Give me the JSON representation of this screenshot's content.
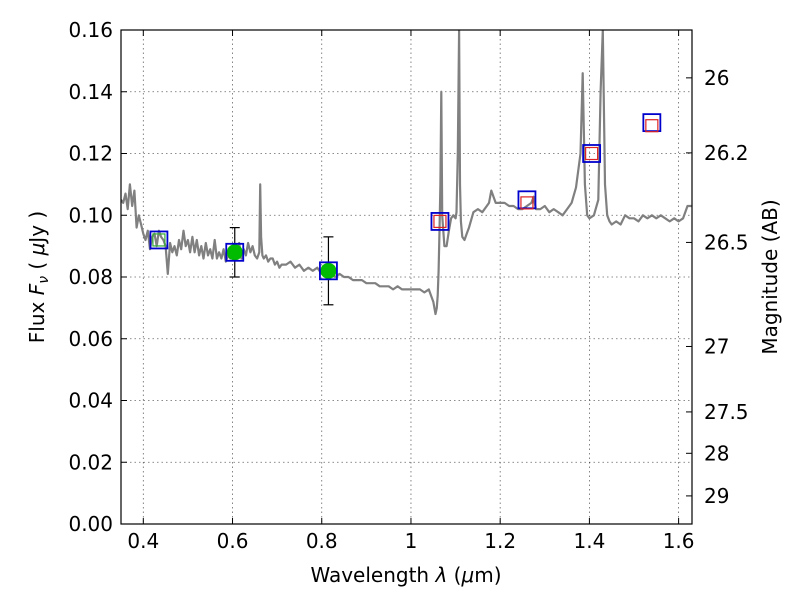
{
  "chart_data": {
    "type": "line",
    "title": "",
    "xlabel": "Wavelength  λ (μm)",
    "ylabel": "Flux  F_ν  ( μJy )",
    "ylabel_right": "Magnitude (AB)",
    "xlim": [
      0.35,
      1.63
    ],
    "ylim": [
      0.0,
      0.16
    ],
    "grid": true,
    "x_ticks": [
      0.4,
      0.6,
      0.8,
      1.0,
      1.2,
      1.4,
      1.6
    ],
    "x_tick_labels": [
      "0.4",
      "0.6",
      "0.8",
      "1",
      "1.2",
      "1.4",
      "1.6"
    ],
    "y_ticks": [
      0.0,
      0.02,
      0.04,
      0.06,
      0.08,
      0.1,
      0.12,
      0.14,
      0.16
    ],
    "y_tick_labels": [
      "0.00",
      "0.02",
      "0.04",
      "0.06",
      "0.08",
      "0.10",
      "0.12",
      "0.14",
      "0.16"
    ],
    "right_ticks": [
      {
        "label": "26",
        "flux": 0.1445
      },
      {
        "label": "26.2",
        "flux": 0.1202
      },
      {
        "label": "26.5",
        "flux": 0.0912
      },
      {
        "label": "27",
        "flux": 0.0575
      },
      {
        "label": "27.5",
        "flux": 0.0363
      },
      {
        "label": "28",
        "flux": 0.0229
      },
      {
        "label": "29",
        "flux": 0.0091
      }
    ],
    "series": [
      {
        "type": "line",
        "color": "#808080",
        "x": [
          0.35,
          0.355,
          0.36,
          0.365,
          0.37,
          0.375,
          0.38,
          0.385,
          0.39,
          0.395,
          0.4,
          0.405,
          0.41,
          0.415,
          0.42,
          0.425,
          0.43,
          0.435,
          0.44,
          0.445,
          0.45,
          0.455,
          0.46,
          0.465,
          0.47,
          0.475,
          0.48,
          0.485,
          0.49,
          0.495,
          0.5,
          0.505,
          0.51,
          0.515,
          0.52,
          0.525,
          0.53,
          0.535,
          0.54,
          0.545,
          0.55,
          0.555,
          0.56,
          0.565,
          0.57,
          0.575,
          0.58,
          0.585,
          0.59,
          0.595,
          0.6,
          0.605,
          0.61,
          0.615,
          0.62,
          0.625,
          0.63,
          0.635,
          0.64,
          0.645,
          0.65,
          0.655,
          0.66,
          0.662,
          0.664,
          0.667,
          0.67,
          0.675,
          0.68,
          0.685,
          0.69,
          0.695,
          0.7,
          0.705,
          0.71,
          0.72,
          0.73,
          0.74,
          0.75,
          0.76,
          0.77,
          0.78,
          0.79,
          0.8,
          0.81,
          0.82,
          0.83,
          0.84,
          0.85,
          0.86,
          0.87,
          0.88,
          0.89,
          0.9,
          0.91,
          0.92,
          0.93,
          0.94,
          0.95,
          0.96,
          0.97,
          0.98,
          0.99,
          1.0,
          1.01,
          1.02,
          1.03,
          1.04,
          1.045,
          1.05,
          1.055,
          1.058,
          1.06,
          1.062,
          1.064,
          1.066,
          1.068,
          1.07,
          1.075,
          1.08,
          1.085,
          1.09,
          1.095,
          1.1,
          1.102,
          1.105,
          1.108,
          1.11,
          1.112,
          1.115,
          1.12,
          1.125,
          1.13,
          1.14,
          1.15,
          1.16,
          1.17,
          1.175,
          1.18,
          1.19,
          1.2,
          1.21,
          1.22,
          1.23,
          1.24,
          1.25,
          1.26,
          1.27,
          1.275,
          1.28,
          1.29,
          1.3,
          1.31,
          1.32,
          1.33,
          1.34,
          1.35,
          1.36,
          1.37,
          1.38,
          1.385,
          1.39,
          1.395,
          1.4,
          1.41,
          1.42,
          1.425,
          1.43,
          1.435,
          1.44,
          1.445,
          1.45,
          1.46,
          1.47,
          1.48,
          1.49,
          1.5,
          1.51,
          1.52,
          1.53,
          1.54,
          1.55,
          1.56,
          1.57,
          1.58,
          1.59,
          1.6,
          1.61,
          1.62,
          1.63
        ],
        "y": [
          0.105,
          0.104,
          0.107,
          0.102,
          0.11,
          0.103,
          0.108,
          0.096,
          0.1,
          0.097,
          0.094,
          0.092,
          0.095,
          0.089,
          0.093,
          0.094,
          0.09,
          0.095,
          0.093,
          0.092,
          0.09,
          0.081,
          0.091,
          0.088,
          0.09,
          0.087,
          0.092,
          0.089,
          0.095,
          0.09,
          0.092,
          0.088,
          0.093,
          0.088,
          0.092,
          0.087,
          0.09,
          0.086,
          0.091,
          0.087,
          0.089,
          0.086,
          0.092,
          0.086,
          0.088,
          0.086,
          0.089,
          0.085,
          0.087,
          0.086,
          0.088,
          0.089,
          0.087,
          0.091,
          0.086,
          0.089,
          0.087,
          0.091,
          0.088,
          0.09,
          0.087,
          0.086,
          0.088,
          0.11,
          0.093,
          0.087,
          0.086,
          0.087,
          0.085,
          0.086,
          0.086,
          0.084,
          0.085,
          0.083,
          0.084,
          0.084,
          0.085,
          0.083,
          0.084,
          0.082,
          0.083,
          0.082,
          0.083,
          0.081,
          0.082,
          0.081,
          0.08,
          0.081,
          0.08,
          0.08,
          0.079,
          0.079,
          0.079,
          0.078,
          0.078,
          0.078,
          0.077,
          0.077,
          0.077,
          0.076,
          0.077,
          0.076,
          0.076,
          0.076,
          0.076,
          0.076,
          0.075,
          0.076,
          0.074,
          0.072,
          0.068,
          0.07,
          0.074,
          0.082,
          0.095,
          0.11,
          0.14,
          0.1,
          0.09,
          0.09,
          0.095,
          0.099,
          0.1,
          0.099,
          0.101,
          0.12,
          0.16,
          0.11,
          0.098,
          0.093,
          0.092,
          0.094,
          0.096,
          0.101,
          0.102,
          0.101,
          0.103,
          0.104,
          0.108,
          0.104,
          0.104,
          0.104,
          0.103,
          0.103,
          0.102,
          0.102,
          0.103,
          0.104,
          0.106,
          0.102,
          0.102,
          0.103,
          0.101,
          0.102,
          0.101,
          0.1,
          0.102,
          0.104,
          0.109,
          0.12,
          0.146,
          0.11,
          0.1,
          0.099,
          0.1,
          0.105,
          0.14,
          0.16,
          0.11,
          0.1,
          0.098,
          0.097,
          0.098,
          0.097,
          0.1,
          0.099,
          0.099,
          0.098,
          0.1,
          0.099,
          0.1,
          0.099,
          0.1,
          0.099,
          0.098,
          0.099,
          0.098,
          0.099,
          0.103,
          0.103
        ]
      },
      {
        "type": "errorbar",
        "color": "#00bb00",
        "x": [
          0.605,
          0.815
        ],
        "y": [
          0.088,
          0.082
        ],
        "yerr": [
          0.008,
          0.011
        ]
      },
      {
        "type": "open-square-blue",
        "color": "#0000cc",
        "x": [
          0.435,
          0.605,
          0.815,
          1.065,
          1.26,
          1.405,
          1.54
        ],
        "y": [
          0.092,
          0.088,
          0.082,
          0.098,
          0.105,
          0.12,
          0.13
        ]
      },
      {
        "type": "open-square-red",
        "color": "#dd2222",
        "x": [
          1.065,
          1.26,
          1.405,
          1.54
        ],
        "y": [
          0.098,
          0.104,
          0.12,
          0.129
        ]
      },
      {
        "type": "open-square-green",
        "color": "#33aa33",
        "x": [
          0.435
        ],
        "y": [
          0.092
        ]
      }
    ]
  }
}
